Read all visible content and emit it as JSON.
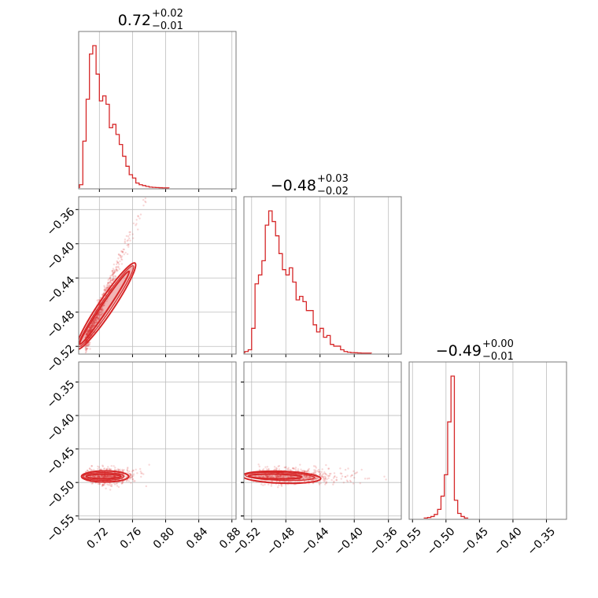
{
  "chart_data": {
    "type": "corner",
    "color": "#d62728",
    "parameters": [
      {
        "title_value": "0.72",
        "title_plus": "+0.02",
        "title_minus": "−0.01",
        "range": [
          0.695,
          0.885
        ],
        "ticks": [
          "0.72",
          "0.76",
          "0.80",
          "0.84",
          "0.88"
        ],
        "tick_values": [
          0.72,
          0.76,
          0.8,
          0.84,
          0.88
        ]
      },
      {
        "title_value": "−0.48",
        "title_plus": "+0.03",
        "title_minus": "−0.02",
        "range": [
          -0.529,
          -0.345
        ],
        "ticks": [
          "−0.52",
          "−0.48",
          "−0.44",
          "−0.40",
          "−0.36"
        ],
        "tick_values": [
          -0.52,
          -0.48,
          -0.44,
          -0.4,
          -0.36
        ]
      },
      {
        "title_value": "−0.49",
        "title_plus": "+0.00",
        "title_minus": "−0.01",
        "range": [
          -0.555,
          -0.32
        ],
        "ticks": [
          "−0.55",
          "−0.50",
          "−0.45",
          "−0.40",
          "−0.35"
        ],
        "tick_values": [
          -0.55,
          -0.5,
          -0.45,
          -0.4,
          -0.35
        ]
      }
    ],
    "histograms": [
      {
        "x": [
          0.698,
          0.702,
          0.706,
          0.71,
          0.714,
          0.718,
          0.722,
          0.726,
          0.73,
          0.734,
          0.738,
          0.742,
          0.746,
          0.75,
          0.754,
          0.758,
          0.762,
          0.766,
          0.77,
          0.774,
          0.778,
          0.782,
          0.786,
          0.79,
          0.794,
          0.798,
          0.802
        ],
        "counts": [
          2,
          28,
          53,
          80,
          85,
          68,
          52,
          55,
          50,
          36,
          38,
          32,
          26,
          19,
          13,
          8,
          6,
          3,
          2,
          1.5,
          1,
          0.6,
          0.4,
          0.3,
          0.2,
          0.1,
          0.1
        ]
      },
      {
        "x": [
          -0.526,
          -0.522,
          -0.518,
          -0.514,
          -0.51,
          -0.506,
          -0.502,
          -0.498,
          -0.494,
          -0.49,
          -0.486,
          -0.482,
          -0.478,
          -0.474,
          -0.47,
          -0.466,
          -0.462,
          -0.458,
          -0.454,
          -0.45,
          -0.446,
          -0.442,
          -0.438,
          -0.434,
          -0.43,
          -0.426,
          -0.422,
          -0.418,
          -0.414,
          -0.41,
          -0.406,
          -0.402,
          -0.398,
          -0.394,
          -0.39,
          -0.386,
          -0.382
        ],
        "counts": [
          1,
          2,
          14,
          39,
          44,
          52,
          72,
          80,
          74,
          66,
          56,
          47,
          44,
          48,
          40,
          30,
          32,
          29,
          24,
          24,
          16,
          12,
          14,
          9,
          10,
          5,
          4,
          4,
          2,
          1,
          0.6,
          0.4,
          0.3,
          0.2,
          0.1,
          0.1,
          0.1
        ]
      },
      {
        "x": [
          -0.53,
          -0.525,
          -0.52,
          -0.515,
          -0.51,
          -0.505,
          -0.5,
          -0.495,
          -0.49,
          -0.485,
          -0.48,
          -0.475,
          -0.47
        ],
        "counts": [
          0.5,
          1,
          2,
          4,
          9,
          22,
          43,
          95,
          140,
          18,
          5,
          2,
          0.5
        ]
      }
    ],
    "pairs": [
      {
        "row": 1,
        "col": 0,
        "correlation": "strong positive",
        "center": [
          0.725,
          -0.49
        ]
      },
      {
        "row": 2,
        "col": 0,
        "correlation": "none",
        "center": [
          0.725,
          -0.491
        ]
      },
      {
        "row": 2,
        "col": 1,
        "correlation": "none",
        "center": [
          -0.48,
          -0.491
        ]
      }
    ]
  }
}
